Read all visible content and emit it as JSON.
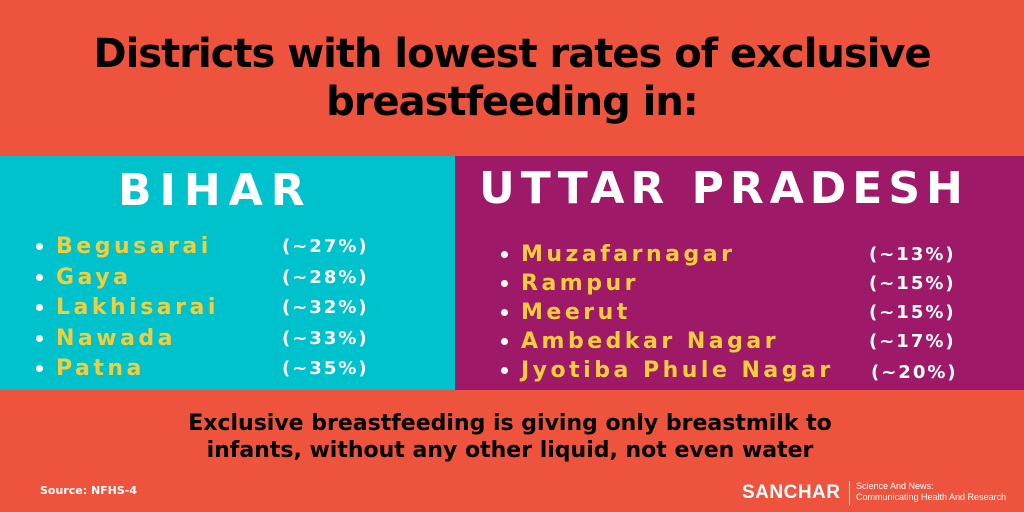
{
  "title": {
    "line1": "Districts with lowest rates of exclusive",
    "line2": "breastfeeding in:"
  },
  "colors": {
    "background": "#ee533d",
    "bihar_panel": "#00c2cc",
    "up_panel": "#9e1a68",
    "district_text": "#f2cf3a"
  },
  "bihar": {
    "name": "BIHAR",
    "districts": [
      {
        "name": "Begusarai",
        "rate": "(~27%)"
      },
      {
        "name": "Gaya",
        "rate": "(~28%)"
      },
      {
        "name": "Lakhisarai",
        "rate": "(~32%)"
      },
      {
        "name": "Nawada",
        "rate": "(~33%)"
      },
      {
        "name": "Patna",
        "rate": "(~35%)"
      }
    ]
  },
  "uttar_pradesh": {
    "name": "UTTAR PRADESH",
    "districts": [
      {
        "name": "Muzafarnagar",
        "rate": "(~13%)"
      },
      {
        "name": "Rampur",
        "rate": "(~15%)"
      },
      {
        "name": "Meerut",
        "rate": "(~15%)"
      },
      {
        "name": "Ambedkar Nagar",
        "rate": "(~17%)"
      },
      {
        "name": "Jyotiba Phule Nagar",
        "rate": "(~20%)"
      }
    ]
  },
  "definition": {
    "line1": "Exclusive breastfeeding is giving only breastmilk to",
    "line2": "infants, without any other liquid, not even water"
  },
  "source": "Source: NFHS-4",
  "brand": {
    "name": "SANCHAR",
    "tagline1": "Science And News:",
    "tagline2": "Communicating Health And Research"
  }
}
